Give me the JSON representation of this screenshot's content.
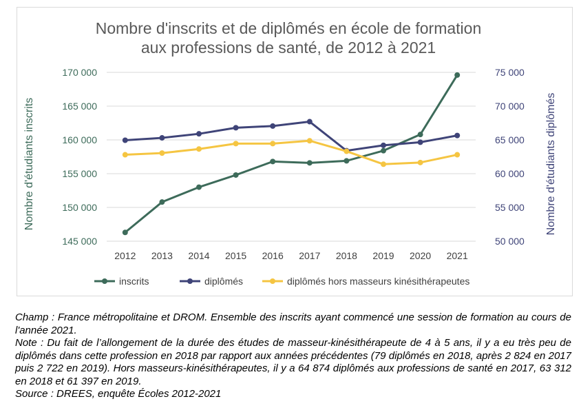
{
  "chart_data": {
    "type": "line",
    "title_line1": "Nombre d'inscrits et de diplômés en école de formation",
    "title_line2": "aux professions de santé, de 2012 à 2021",
    "ylabel_left": "Nombre d'étudiants inscrits",
    "ylabel_right": "Nombre d'étudiants diplômés",
    "x": [
      2012,
      2013,
      2014,
      2015,
      2016,
      2017,
      2018,
      2019,
      2020,
      2021
    ],
    "x_labels": [
      "2012",
      "2013",
      "2014",
      "2015",
      "2016",
      "2017",
      "2018",
      "2019",
      "2020",
      "2021"
    ],
    "ylim_left": [
      145000,
      170000
    ],
    "ylim_right": [
      50000,
      75000
    ],
    "y_ticks_left": [
      "145 000",
      "150 000",
      "155 000",
      "160 000",
      "165 000",
      "170 000"
    ],
    "y_ticks_right": [
      "50 000",
      "55 000",
      "60 000",
      "65 000",
      "70 000",
      "75 000"
    ],
    "grid": true,
    "legend_placement": "bottom",
    "series": [
      {
        "name": "inscrits",
        "axis": "left",
        "color": "#3d6b5a",
        "values": [
          146300,
          150800,
          153000,
          154800,
          156800,
          156600,
          156900,
          158400,
          160800,
          169600
        ]
      },
      {
        "name": "diplômés",
        "axis": "right",
        "color": "#3f4478",
        "values": [
          64950,
          65300,
          65900,
          66800,
          67050,
          67700,
          63400,
          64200,
          64650,
          65650
        ]
      },
      {
        "name": "diplômés hors masseurs kinésithérapeutes",
        "axis": "right",
        "color": "#f5c542",
        "values": [
          62800,
          63050,
          63650,
          64450,
          64450,
          64874,
          63312,
          61397,
          61650,
          62800
        ]
      }
    ]
  },
  "notes": {
    "champ": "Champ : France métropolitaine et DROM. Ensemble des inscrits ayant commencé une session de formation au cours de l'année 2021.",
    "note": "Note : Du fait de l’allongement de la durée des études de masseur-kinésithérapeute de 4 à 5 ans, il y a eu très peu de diplômés dans cette profession en 2018 par rapport aux années précédentes (79 diplômés en 2018, après 2 824 en 2017 puis 2 722 en 2019). Hors masseurs-kinésithérapeutes, il y a 64 874 diplômés aux professions de santé en 2017, 63 312 en 2018 et 61 397 en 2019.",
    "source": "Source : DREES, enquête Écoles 2012-2021"
  }
}
